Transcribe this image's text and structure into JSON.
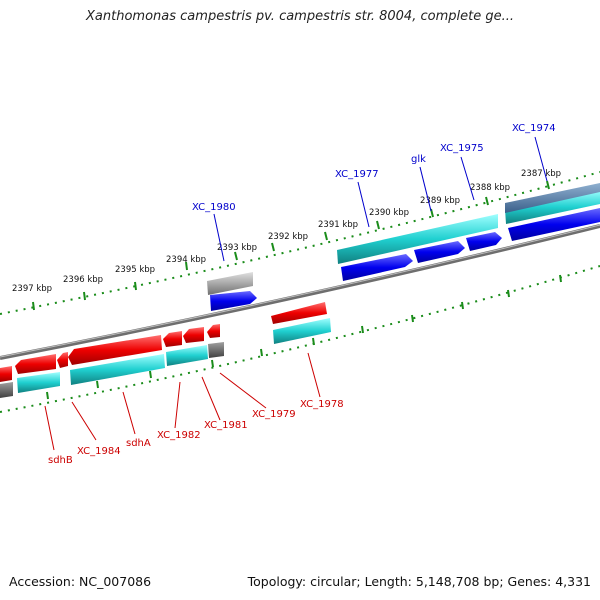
{
  "title": "Xanthomonas campestris pv. campestris str. 8004, complete ge...",
  "footer": {
    "accession": "Accession: NC_007086",
    "stats": "Topology: circular; Length: 5,148,708 bp; Genes: 4,331"
  },
  "colors": {
    "forward_gene": "#0000e6",
    "reverse_gene": "#ee0000",
    "forward_feature": "#20c8c8",
    "reverse_feature": "#20c8c8",
    "backbone": "#808080",
    "tick": "#1a8c1a",
    "forward_label": "#0000cc",
    "reverse_label": "#cc0000"
  },
  "ticks": [
    {
      "label": "2387 kbp"
    },
    {
      "label": "2388 kbp"
    },
    {
      "label": "2389 kbp"
    },
    {
      "label": "2390 kbp"
    },
    {
      "label": "2391 kbp"
    },
    {
      "label": "2392 kbp"
    },
    {
      "label": "2393 kbp"
    },
    {
      "label": "2394 kbp"
    },
    {
      "label": "2395 kbp"
    },
    {
      "label": "2396 kbp"
    },
    {
      "label": "2397 kbp"
    }
  ],
  "forward_genes": [
    {
      "name": "XC_1974"
    },
    {
      "name": "XC_1975"
    },
    {
      "name": "glk"
    },
    {
      "name": "XC_1977"
    },
    {
      "name": "XC_1980"
    }
  ],
  "reverse_genes": [
    {
      "name": "sdhB"
    },
    {
      "name": "XC_1984"
    },
    {
      "name": "sdhA"
    },
    {
      "name": "XC_1982"
    },
    {
      "name": "XC_1981"
    },
    {
      "name": "XC_1979"
    },
    {
      "name": "XC_1978"
    }
  ]
}
